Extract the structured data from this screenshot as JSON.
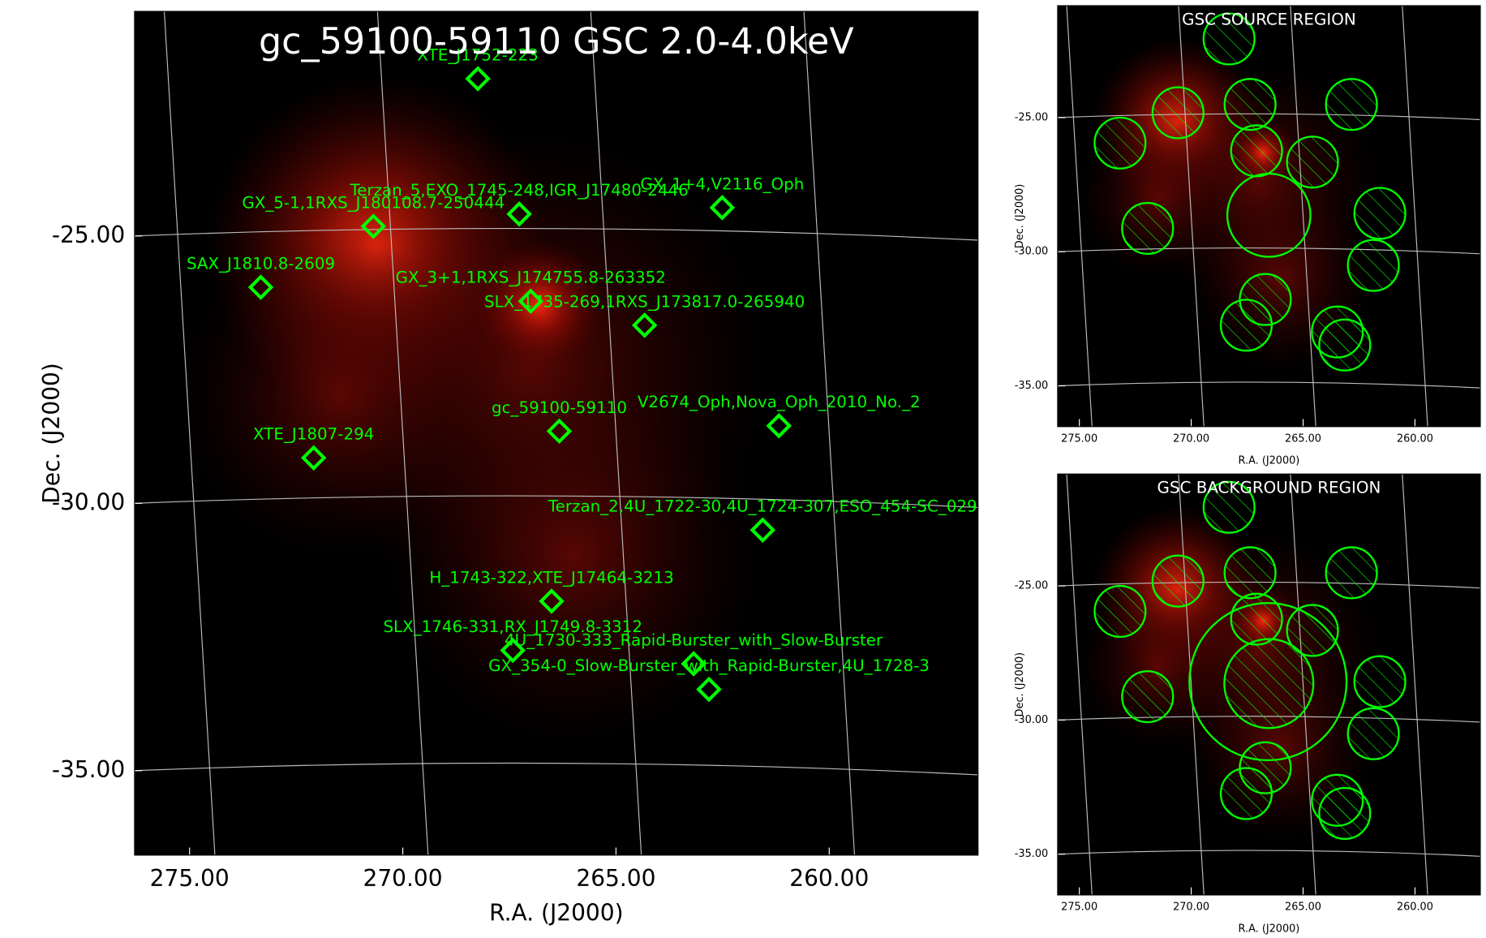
{
  "chart_data": [
    {
      "type": "scatter",
      "title": "gc_59100-59110 GSC 2.0-4.0keV",
      "x_label": "R.A. (J2000)",
      "y_label": "Dec. (J2000)",
      "xlim": [
        276.29,
        256.51
      ],
      "ylim": [
        -36.58,
        -20.8
      ],
      "xticks": [
        {
          "value": 275,
          "label": "275.00"
        },
        {
          "value": 270,
          "label": "270.00"
        },
        {
          "value": 265,
          "label": "265.00"
        },
        {
          "value": 260,
          "label": "260.00"
        }
      ],
      "yticks": [
        {
          "value": -25,
          "label": "-25.00"
        },
        {
          "value": -30,
          "label": "-30.00"
        },
        {
          "value": -35,
          "label": "-35.00"
        }
      ],
      "grid": true,
      "color": "#00ff00",
      "labels": [
        "XTE_J1752-223",
        "Terzan_5,EXO_1745-248,IGR_J17480-2446",
        "GX_1+4,V2116_Oph",
        "GX_5-1,1RXS_J180108.7-250444",
        "SAX_J1810.8-2609",
        "GX_3+1,1RXS_J174755.8-263352",
        "SLX_1735-269,1RXS_J173817.0-265940",
        "gc_59100-59110",
        "V2674_Oph,Nova_Oph_2010_No._2",
        "XTE_J1807-294",
        "Terzan_2,4U_1722-30,4U_1724-307,ESO_454-SC_029",
        "H_1743-322,XTE_J17464-3213",
        "SLX_1746-331,RX_J1749.8-3312",
        "4U_1730-333_Rapid-Burster_with_Slow-Burster",
        "GX_354-0_Slow-Burster_with_Rapid-Burster,4U_1728-3"
      ],
      "x": [
        268.24,
        267.27,
        262.51,
        270.69,
        273.33,
        267.0,
        264.33,
        266.33,
        261.18,
        272.09,
        261.56,
        266.51,
        267.42,
        263.18,
        262.82
      ],
      "y": [
        -22.06,
        -24.59,
        -24.47,
        -24.82,
        -25.96,
        -26.22,
        -26.67,
        -28.65,
        -28.55,
        -29.15,
        -30.5,
        -31.83,
        -32.75,
        -33.0,
        -33.48
      ]
    },
    {
      "type": "regions",
      "title": "GSC SOURCE REGION",
      "x_label": "R.A. (J2000)",
      "y_label": "Dec. (J2000)",
      "xlim": [
        275.97,
        257.08
      ],
      "ylim": [
        -36.52,
        -20.83
      ],
      "xticks": [
        {
          "value": 275,
          "label": "275.00"
        },
        {
          "value": 270,
          "label": "270.00"
        },
        {
          "value": 265,
          "label": "265.00"
        },
        {
          "value": 260,
          "label": "260.00"
        }
      ],
      "yticks": [
        {
          "value": -25,
          "label": "-25.00"
        },
        {
          "value": -30,
          "label": "-30.00"
        },
        {
          "value": -35,
          "label": "-35.00"
        }
      ],
      "grid": true,
      "color": "#00ff00",
      "x": [
        268.31,
        270.59,
        267.37,
        262.84,
        273.18,
        267.08,
        264.58,
        266.53,
        271.95,
        261.57,
        261.86,
        266.69,
        267.54,
        263.47,
        263.14
      ],
      "y": [
        -22.07,
        -24.82,
        -24.51,
        -24.51,
        -25.95,
        -26.24,
        -26.66,
        -28.64,
        -29.13,
        -28.57,
        -30.51,
        -31.78,
        -32.74,
        -32.99,
        -33.48
      ],
      "radius": [
        0.95,
        0.95,
        0.95,
        0.95,
        0.95,
        0.95,
        0.95,
        1.55,
        0.95,
        0.95,
        0.95,
        0.95,
        0.95,
        0.95,
        0.95
      ],
      "hatched": [
        true,
        true,
        true,
        true,
        true,
        true,
        true,
        false,
        true,
        true,
        true,
        true,
        true,
        true,
        true
      ]
    },
    {
      "type": "regions",
      "title": "GSC BACKGROUND REGION",
      "x_label": "R.A. (J2000)",
      "y_label": "Dec. (J2000)",
      "xlim": [
        275.97,
        257.08
      ],
      "ylim": [
        -36.52,
        -20.83
      ],
      "xticks": [
        {
          "value": 275,
          "label": "275.00"
        },
        {
          "value": 270,
          "label": "270.00"
        },
        {
          "value": 265,
          "label": "265.00"
        },
        {
          "value": 260,
          "label": "260.00"
        }
      ],
      "yticks": [
        {
          "value": -25,
          "label": "-25.00"
        },
        {
          "value": -30,
          "label": "-30.00"
        },
        {
          "value": -35,
          "label": "-35.00"
        }
      ],
      "grid": true,
      "color": "#00ff00",
      "x": [
        268.31,
        270.59,
        267.37,
        262.84,
        273.18,
        267.08,
        264.58,
        266.57,
        266.53,
        271.95,
        261.57,
        261.86,
        266.69,
        267.54,
        263.47,
        263.14
      ],
      "y": [
        -22.07,
        -24.82,
        -24.51,
        -24.51,
        -25.95,
        -26.24,
        -26.66,
        -28.57,
        -28.64,
        -29.13,
        -28.57,
        -30.51,
        -31.78,
        -32.74,
        -32.99,
        -33.48
      ],
      "radius": [
        0.95,
        0.95,
        0.95,
        0.95,
        0.95,
        0.95,
        0.95,
        2.93,
        1.66,
        0.95,
        0.95,
        0.95,
        0.95,
        0.95,
        0.95,
        0.95
      ],
      "hatched": [
        true,
        true,
        true,
        true,
        true,
        true,
        true,
        false,
        true,
        true,
        true,
        true,
        true,
        true,
        true,
        true
      ]
    }
  ]
}
